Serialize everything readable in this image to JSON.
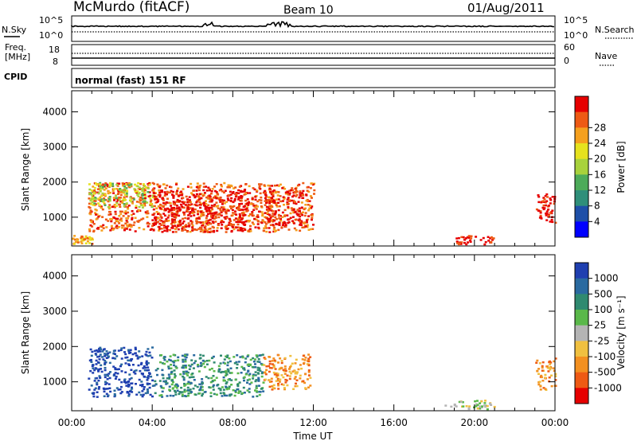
{
  "header": {
    "station": "McMurdo (fitACF)",
    "beam": "Beam 10",
    "date": "01/Aug/2011"
  },
  "status_panels": {
    "nsky_label": "N.Sky",
    "nsearch_label": "N.Search",
    "noise_ticks": [
      "10^5",
      "10^0"
    ],
    "freq_label_line1": "Freq.",
    "freq_label_line2": "[MHz]",
    "freq_ticks": [
      "18",
      "8"
    ],
    "nave_label": "Nave",
    "nave_ticks": [
      "60",
      "0"
    ],
    "cpid_label": "CPID",
    "cpid_value": "normal (fast) 151 RF"
  },
  "chart_data": [
    {
      "type": "heatmap",
      "name": "power",
      "ylabel": "Slant Range [km]",
      "xlabel": "",
      "ylim": [
        180,
        4600
      ],
      "xlim": [
        0,
        24
      ],
      "y_ticks": [
        "1000",
        "2000",
        "3000",
        "4000"
      ],
      "colorbar": {
        "label": "Power [dB]",
        "ticks": [
          "4",
          "8",
          "12",
          "16",
          "20",
          "24",
          "28"
        ],
        "colors": [
          "#0000ff",
          "#1e4fa8",
          "#2f8f7a",
          "#4dab5a",
          "#a8d23c",
          "#e6e21e",
          "#f5a01e",
          "#ee5a14",
          "#e60000"
        ]
      },
      "echo_regions": [
        {
          "t0": 0.0,
          "t1": 1.0,
          "r0": 250,
          "r1": 500,
          "level": 6
        },
        {
          "t0": 0.8,
          "t1": 12.0,
          "r0": 600,
          "r1": 2000,
          "level": 7
        },
        {
          "t0": 0.8,
          "t1": 4.0,
          "r0": 1300,
          "r1": 2000,
          "level": 4
        },
        {
          "t0": 4.0,
          "t1": 9.0,
          "r0": 600,
          "r1": 1800,
          "level": 8
        },
        {
          "t0": 9.5,
          "t1": 11.5,
          "r0": 800,
          "r1": 1800,
          "level": 8
        },
        {
          "t0": 19.0,
          "t1": 21.0,
          "r0": 250,
          "r1": 500,
          "level": 8
        },
        {
          "t0": 23.0,
          "t1": 24.0,
          "r0": 800,
          "r1": 1700,
          "level": 8
        }
      ]
    },
    {
      "type": "heatmap",
      "name": "velocity",
      "ylabel": "Slant Range [km]",
      "xlabel": "Time UT",
      "ylim": [
        180,
        4600
      ],
      "xlim": [
        0,
        24
      ],
      "x_ticks": [
        "00:00",
        "04:00",
        "08:00",
        "12:00",
        "16:00",
        "20:00",
        "00:00"
      ],
      "y_ticks": [
        "1000",
        "2000",
        "3000",
        "4000"
      ],
      "colorbar": {
        "label": "Velocity [m s⁻¹]",
        "ticks": [
          "1000",
          "500",
          "100",
          "25",
          "-25",
          "-100",
          "-500",
          "-1000"
        ],
        "colors": [
          "#1f3fb0",
          "#2a6aa0",
          "#2f8a70",
          "#5ab84a",
          "#b4b4b4",
          "#f0c040",
          "#f39020",
          "#ee5a14",
          "#e60000"
        ]
      },
      "echo_regions": [
        {
          "t0": 0.8,
          "t1": 4.0,
          "r0": 600,
          "r1": 2000,
          "level": 0
        },
        {
          "t0": 4.0,
          "t1": 9.5,
          "r0": 600,
          "r1": 1800,
          "level": 2
        },
        {
          "t0": 9.5,
          "t1": 11.8,
          "r0": 800,
          "r1": 1800,
          "level": 6
        },
        {
          "t0": 18.5,
          "t1": 21.0,
          "r0": 250,
          "r1": 500,
          "level": 4
        },
        {
          "t0": 23.0,
          "t1": 24.0,
          "r0": 800,
          "r1": 1700,
          "level": 6
        }
      ]
    }
  ]
}
